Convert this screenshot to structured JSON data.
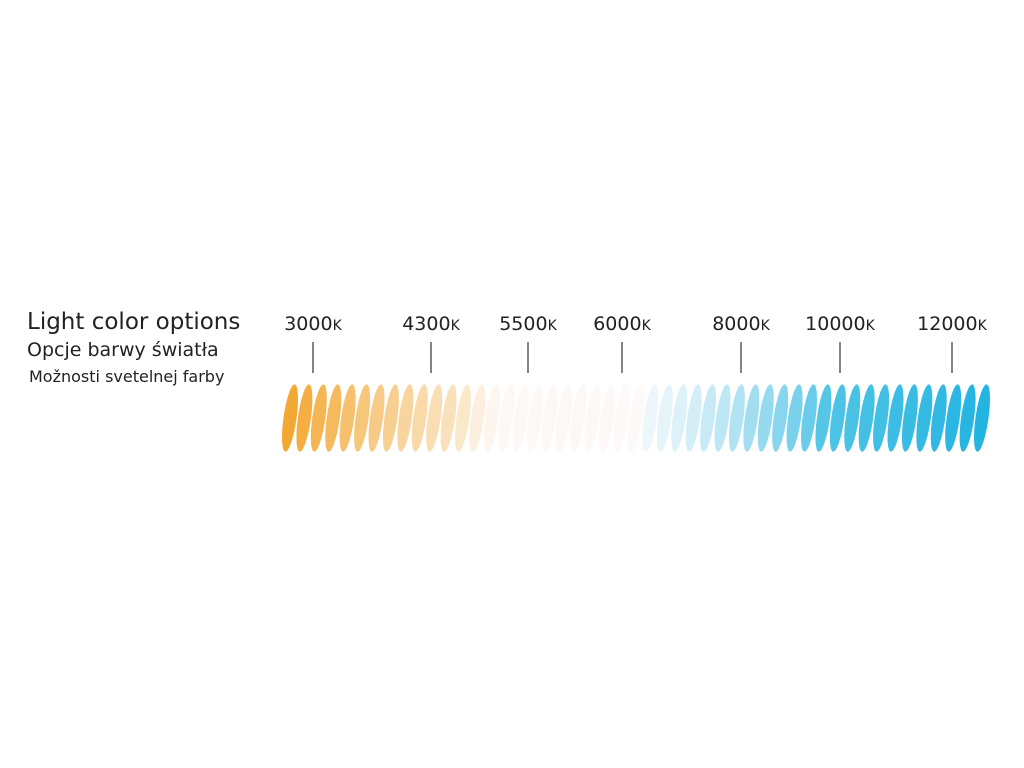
{
  "header": {
    "title": "Light color options",
    "subtitle_pl": "Opcje barwy światła",
    "subtitle_sk": "Možnosti svetelnej farby"
  },
  "scale": {
    "labels": [
      {
        "number": "3000",
        "unit": "K"
      },
      {
        "number": "4300",
        "unit": "K"
      },
      {
        "number": "5500",
        "unit": "K"
      },
      {
        "number": "6000",
        "unit": "K"
      },
      {
        "number": "8000",
        "unit": "K"
      },
      {
        "number": "10000",
        "unit": "K"
      },
      {
        "number": "12000",
        "unit": "K"
      }
    ]
  }
}
